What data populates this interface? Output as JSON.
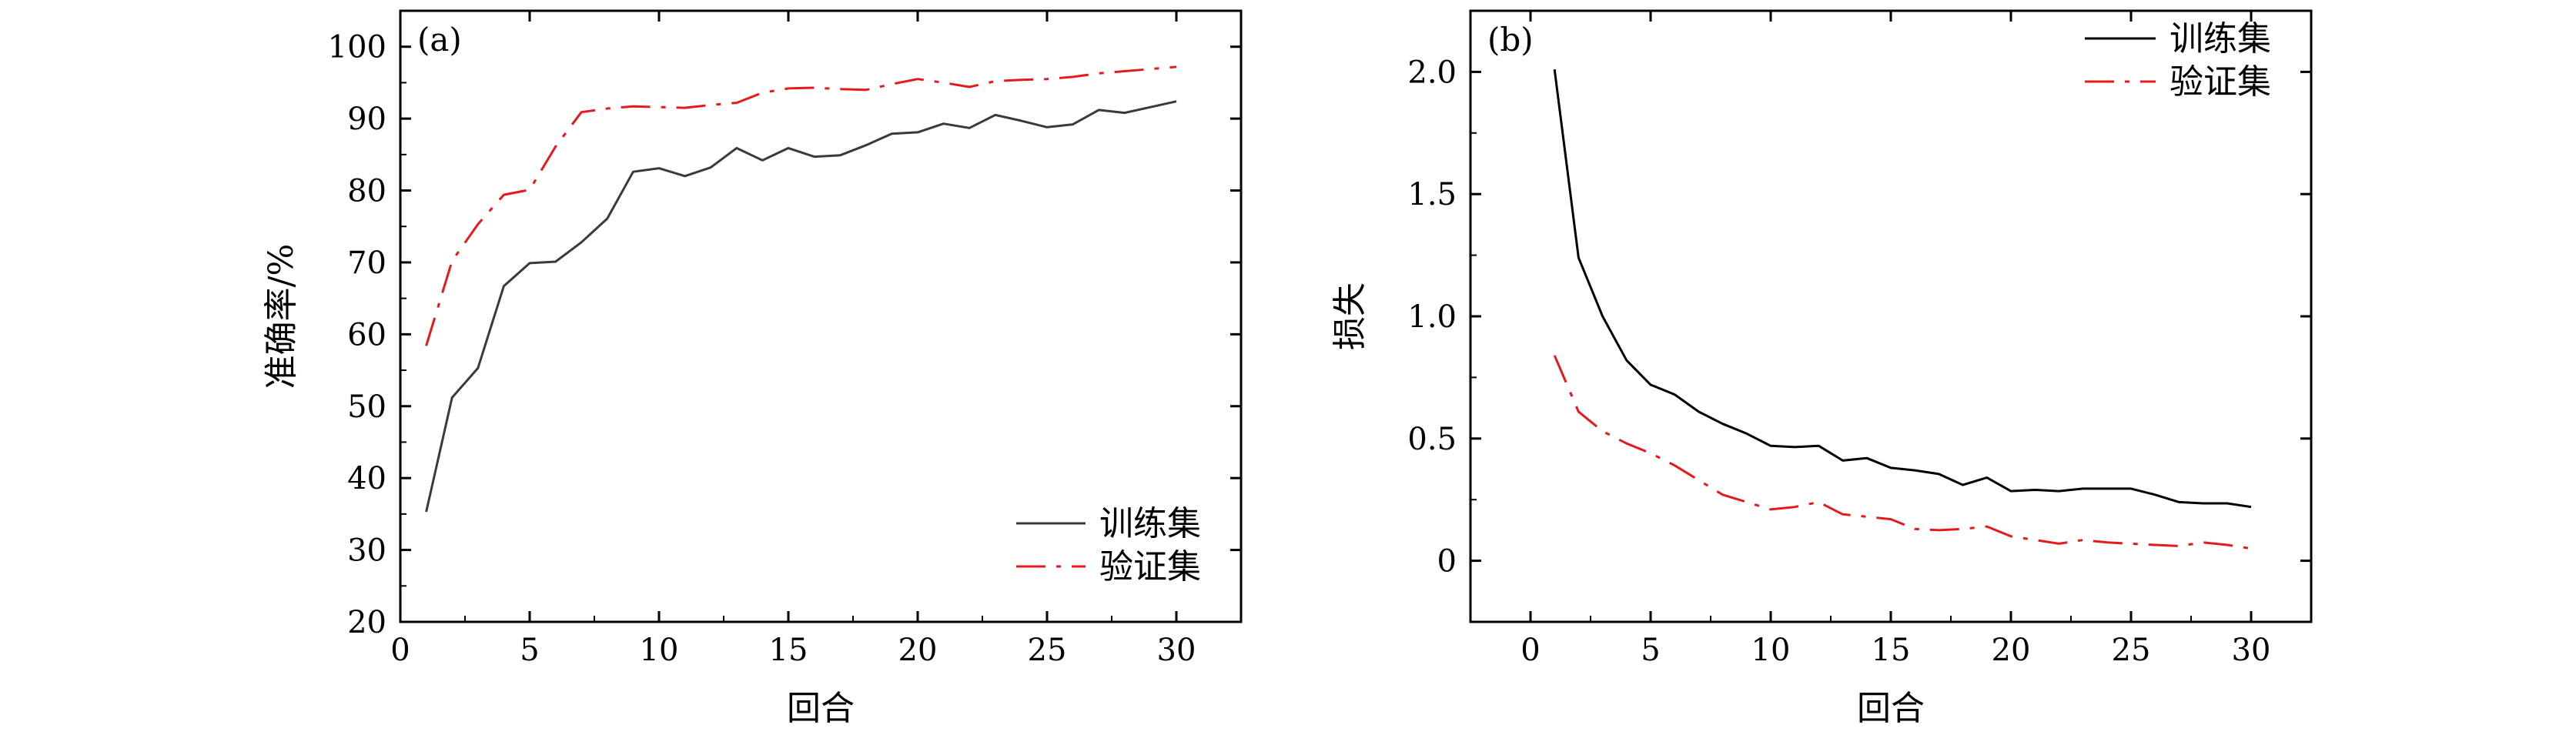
{
  "chart_data": [
    {
      "type": "line",
      "panel_label": "(a)",
      "xlabel": "回合",
      "ylabel": "准确率/%",
      "xlim": [
        0,
        32.5
      ],
      "ylim": [
        20,
        105
      ],
      "xticks": [
        0,
        5,
        10,
        15,
        20,
        25,
        30
      ],
      "yticks": [
        20,
        30,
        40,
        50,
        60,
        70,
        80,
        90,
        100
      ],
      "legend_position": "bottom-right",
      "series": [
        {
          "name": "训练集",
          "color": "#3a3a3a",
          "style": "solid",
          "x": [
            1,
            2,
            3,
            4,
            5,
            6,
            7,
            8,
            9,
            10,
            11,
            12,
            13,
            14,
            15,
            16,
            17,
            18,
            19,
            20,
            21,
            22,
            23,
            24,
            25,
            26,
            27,
            28,
            29,
            30
          ],
          "values": [
            35.3,
            51.2,
            55.3,
            66.7,
            69.9,
            70.1,
            72.8,
            76.1,
            82.6,
            83.1,
            82.0,
            83.2,
            85.9,
            84.2,
            85.9,
            84.7,
            84.9,
            86.3,
            87.9,
            88.1,
            89.3,
            88.7,
            90.5,
            89.7,
            88.8,
            89.2,
            91.2,
            90.8,
            91.6,
            92.4
          ]
        },
        {
          "name": "验证集",
          "color": "#e41a1c",
          "style": "dashdot",
          "x": [
            1,
            2,
            3,
            4,
            5,
            6,
            7,
            8,
            9,
            10,
            11,
            12,
            13,
            14,
            15,
            16,
            17,
            18,
            19,
            20,
            21,
            22,
            23,
            24,
            25,
            26,
            27,
            28,
            29,
            30
          ],
          "values": [
            58.4,
            70.2,
            75.3,
            79.4,
            80.1,
            86.1,
            90.9,
            91.4,
            91.7,
            91.6,
            91.5,
            91.9,
            92.2,
            93.6,
            94.2,
            94.3,
            94.1,
            94.0,
            94.8,
            95.5,
            95.0,
            94.4,
            95.2,
            95.4,
            95.5,
            95.8,
            96.3,
            96.6,
            96.9,
            97.2
          ]
        }
      ]
    },
    {
      "type": "line",
      "panel_label": "(b)",
      "xlabel": "回合",
      "ylabel": "损失",
      "xlim": [
        -2.5,
        32.5
      ],
      "ylim": [
        -0.25,
        2.25
      ],
      "xticks": [
        0,
        5,
        10,
        15,
        20,
        25,
        30
      ],
      "yticks": [
        0,
        0.5,
        1.0,
        1.5,
        2.0
      ],
      "ytick_labels": [
        "0",
        "0.5",
        "1.0",
        "1.5",
        "2.0"
      ],
      "legend_position": "top-right",
      "series": [
        {
          "name": "训练集",
          "color": "#000000",
          "style": "solid",
          "x": [
            1,
            2,
            3,
            4,
            5,
            6,
            7,
            8,
            9,
            10,
            11,
            12,
            13,
            14,
            15,
            16,
            17,
            18,
            19,
            20,
            21,
            22,
            23,
            24,
            25,
            26,
            27,
            28,
            29,
            30
          ],
          "values": [
            2.01,
            1.24,
            1.0,
            0.82,
            0.72,
            0.68,
            0.61,
            0.56,
            0.52,
            0.47,
            0.465,
            0.47,
            0.41,
            0.42,
            0.38,
            0.37,
            0.355,
            0.31,
            0.34,
            0.285,
            0.29,
            0.285,
            0.295,
            0.295,
            0.295,
            0.27,
            0.24,
            0.235,
            0.235,
            0.22
          ]
        },
        {
          "name": "验证集",
          "color": "#e41a1c",
          "style": "dashdot",
          "x": [
            1,
            2,
            3,
            4,
            5,
            6,
            7,
            8,
            9,
            10,
            11,
            12,
            13,
            14,
            15,
            16,
            17,
            18,
            19,
            20,
            21,
            22,
            23,
            24,
            25,
            26,
            27,
            28,
            29,
            30
          ],
          "values": [
            0.84,
            0.61,
            0.53,
            0.48,
            0.44,
            0.39,
            0.33,
            0.27,
            0.24,
            0.21,
            0.22,
            0.24,
            0.19,
            0.18,
            0.17,
            0.13,
            0.125,
            0.13,
            0.14,
            0.1,
            0.085,
            0.07,
            0.085,
            0.075,
            0.07,
            0.065,
            0.06,
            0.075,
            0.065,
            0.05
          ]
        }
      ]
    }
  ]
}
